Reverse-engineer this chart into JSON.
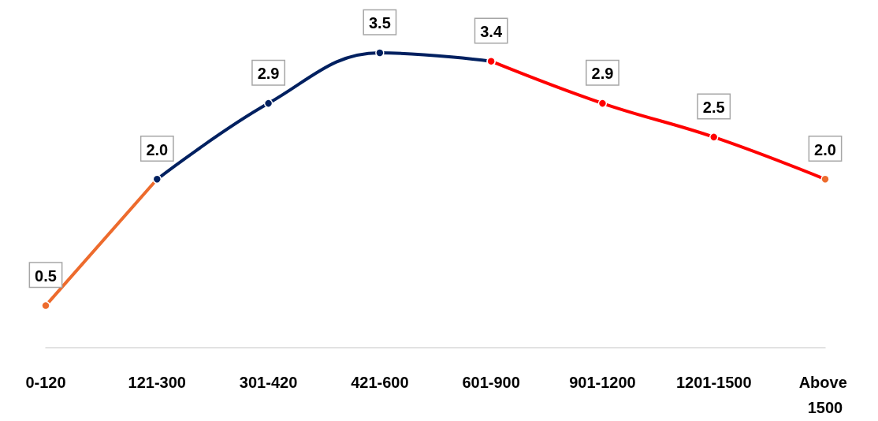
{
  "chart_data": {
    "type": "line",
    "categories": [
      "0-120",
      "121-300",
      "301-420",
      "421-600",
      "601-900",
      "901-1200",
      "1201-1500",
      "Above 1500"
    ],
    "series": [
      {
        "color": "#ed6b2d",
        "colors": [
          "#ed6b2d",
          "#ff0000",
          null,
          null,
          null,
          null,
          null,
          null
        ],
        "values": [
          0.5,
          2.0,
          null,
          null,
          null,
          null,
          null,
          null
        ],
        "value_labels": [
          "0.5",
          "2.0",
          null,
          null,
          null,
          null,
          null,
          null
        ]
      },
      {
        "color": "#002060",
        "colors": [
          null,
          null,
          "#002060",
          "#002060",
          "#002060",
          null,
          null,
          null
        ],
        "values": [
          null,
          2.0,
          2.9,
          3.5,
          3.4,
          null,
          null,
          null
        ],
        "value_labels": [
          null,
          null,
          "2.9",
          "3.5",
          "3.4",
          null,
          null,
          null
        ]
      },
      {
        "color": "#ff0000",
        "colors": [
          null,
          null,
          null,
          null,
          null,
          "#ff0000",
          "#ff0000",
          "#ed6b2d"
        ],
        "values": [
          null,
          null,
          null,
          null,
          3.4,
          2.9,
          2.5,
          2.0
        ],
        "value_labels": [
          null,
          null,
          null,
          null,
          null,
          "2.9",
          "2.5",
          "2.0"
        ]
      }
    ],
    "grid": false,
    "marker": "circle",
    "line_style": "solid"
  }
}
